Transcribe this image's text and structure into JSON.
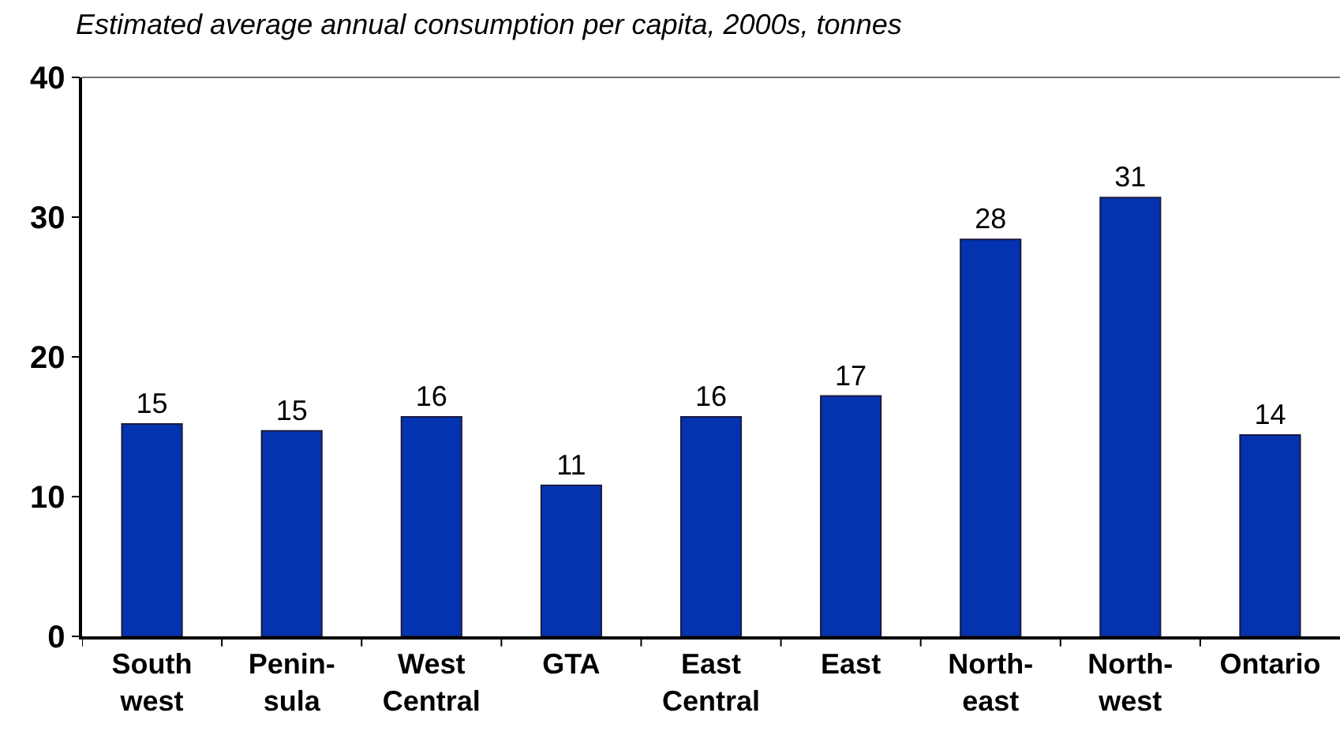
{
  "chart_data": {
    "type": "bar",
    "title": "Estimated average annual consumption per capita, 2000s, tonnes",
    "categories": [
      "South\nwest",
      "Penin-\nsula",
      "West\nCentral",
      "GTA",
      "East\nCentral",
      "East",
      "North-\neast",
      "North-\nwest",
      "Ontario"
    ],
    "values": [
      15.2,
      14.7,
      15.7,
      10.8,
      15.7,
      17.2,
      28.4,
      31.4,
      14.4
    ],
    "value_labels": [
      "15",
      "15",
      "16",
      "11",
      "16",
      "17",
      "28",
      "31",
      "14"
    ],
    "color": "#0433b0",
    "ylim": [
      0,
      40
    ],
    "yticks": [
      0,
      10,
      20,
      30,
      40
    ]
  }
}
